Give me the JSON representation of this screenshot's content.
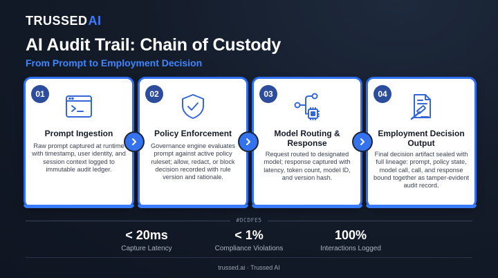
{
  "brand": {
    "name_text": "TRUSSED",
    "name_ai": "AI"
  },
  "header": {
    "title": "AI Audit Trail: Chain of Custody",
    "subtitle": "From Prompt to Employment Decision"
  },
  "cards": [
    {
      "number": "01",
      "icon": "terminal-window-icon",
      "title": "Prompt Ingestion",
      "body": "Raw prompt captured at runtime with timestamp, user identity, and session context logged to immutable audit ledger."
    },
    {
      "number": "02",
      "icon": "shield-check-icon",
      "title": "Policy Enforcement",
      "body": "Governance engine evaluates prompt against active policy ruleset; allow, redact, or block decision recorded with rule version and rationale."
    },
    {
      "number": "03",
      "icon": "routing-chip-icon",
      "title": "Model Routing & Response",
      "body": "Request routed to designated model; response captured with latency, token count, model ID, and version hash."
    },
    {
      "number": "04",
      "icon": "document-gavel-icon",
      "title": "Employment Decision Output",
      "body": "Final decision artifact sealed with full lineage: prompt, policy state, model call, call, and response bound together as tamper-evident audit record."
    }
  ],
  "divider_label": "#DCDFE5",
  "stats": [
    {
      "value": "< 20ms",
      "label": "Capture Latency"
    },
    {
      "value": "< 1%",
      "label": "Compliance Violations"
    },
    {
      "value": "100%",
      "label": "Interactions Logged"
    }
  ],
  "footer": {
    "text": "trussed.ai · Trussed AI"
  },
  "colors": {
    "accent": "#3a7cff",
    "badge": "#2c4d9c",
    "background": "#141c2a"
  }
}
